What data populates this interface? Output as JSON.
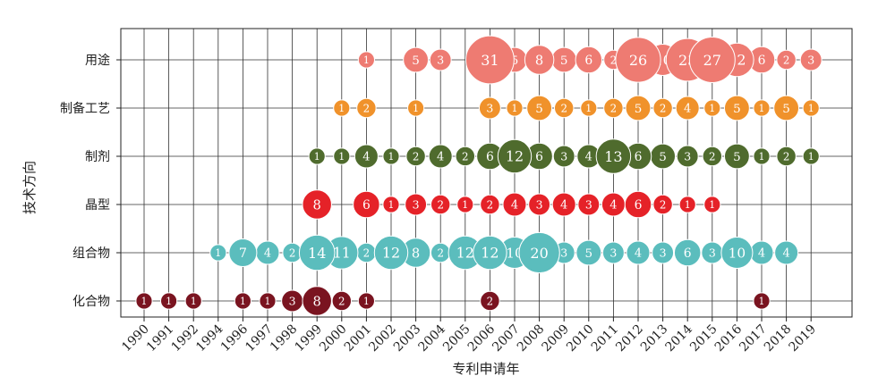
{
  "chart_data": {
    "type": "scatter",
    "subtype": "bubble",
    "xlabel": "专利申请年",
    "ylabel": "技术方向",
    "x_categories": [
      "1990",
      "1991",
      "1992",
      "1994",
      "1996",
      "1997",
      "1998",
      "1999",
      "2000",
      "2001",
      "2002",
      "2003",
      "2004",
      "2005",
      "2006",
      "2007",
      "2008",
      "2009",
      "2010",
      "2011",
      "2012",
      "2013",
      "2014",
      "2015",
      "2016",
      "2017",
      "2018",
      "2019"
    ],
    "y_categories": [
      "用途",
      "制备工艺",
      "制剂",
      "晶型",
      "组合物",
      "化合物"
    ],
    "grid": true,
    "legend": "none",
    "series": [
      {
        "category": "用途",
        "color": "#ee7b72",
        "points": [
          {
            "x": "2001",
            "value": 1
          },
          {
            "x": "2003",
            "value": 5
          },
          {
            "x": "2004",
            "value": 3
          },
          {
            "x": "2006",
            "value": 31
          },
          {
            "x": "2007",
            "value": 5
          },
          {
            "x": "2008",
            "value": 8
          },
          {
            "x": "2009",
            "value": 5
          },
          {
            "x": "2010",
            "value": 6
          },
          {
            "x": "2011",
            "value": 2
          },
          {
            "x": "2012",
            "value": 26
          },
          {
            "x": "2013",
            "value": 10
          },
          {
            "x": "2014",
            "value": 23
          },
          {
            "x": "2015",
            "value": 27
          },
          {
            "x": "2016",
            "value": 12
          },
          {
            "x": "2017",
            "value": 6
          },
          {
            "x": "2018",
            "value": 2
          },
          {
            "x": "2019",
            "value": 3
          }
        ]
      },
      {
        "category": "制备工艺",
        "color": "#f0922b",
        "points": [
          {
            "x": "2000",
            "value": 1
          },
          {
            "x": "2001",
            "value": 2
          },
          {
            "x": "2003",
            "value": 1
          },
          {
            "x": "2006",
            "value": 3
          },
          {
            "x": "2007",
            "value": 1
          },
          {
            "x": "2008",
            "value": 5
          },
          {
            "x": "2009",
            "value": 2
          },
          {
            "x": "2010",
            "value": 1
          },
          {
            "x": "2011",
            "value": 2
          },
          {
            "x": "2012",
            "value": 5
          },
          {
            "x": "2013",
            "value": 2
          },
          {
            "x": "2014",
            "value": 4
          },
          {
            "x": "2015",
            "value": 1
          },
          {
            "x": "2016",
            "value": 5
          },
          {
            "x": "2017",
            "value": 1
          },
          {
            "x": "2018",
            "value": 5
          },
          {
            "x": "2019",
            "value": 1
          }
        ]
      },
      {
        "category": "制剂",
        "color": "#4f6b2d",
        "points": [
          {
            "x": "1999",
            "value": 1
          },
          {
            "x": "2000",
            "value": 1
          },
          {
            "x": "2001",
            "value": 4
          },
          {
            "x": "2002",
            "value": 1
          },
          {
            "x": "2003",
            "value": 2
          },
          {
            "x": "2004",
            "value": 4
          },
          {
            "x": "2005",
            "value": 2
          },
          {
            "x": "2006",
            "value": 6
          },
          {
            "x": "2007",
            "value": 12
          },
          {
            "x": "2008",
            "value": 6
          },
          {
            "x": "2009",
            "value": 3
          },
          {
            "x": "2010",
            "value": 4
          },
          {
            "x": "2011",
            "value": 13
          },
          {
            "x": "2012",
            "value": 6
          },
          {
            "x": "2013",
            "value": 5
          },
          {
            "x": "2014",
            "value": 3
          },
          {
            "x": "2015",
            "value": 2
          },
          {
            "x": "2016",
            "value": 5
          },
          {
            "x": "2017",
            "value": 1
          },
          {
            "x": "2018",
            "value": 2
          },
          {
            "x": "2019",
            "value": 1
          }
        ]
      },
      {
        "category": "晶型",
        "color": "#e52228",
        "points": [
          {
            "x": "1999",
            "value": 8
          },
          {
            "x": "2001",
            "value": 6
          },
          {
            "x": "2002",
            "value": 1
          },
          {
            "x": "2003",
            "value": 3
          },
          {
            "x": "2004",
            "value": 2
          },
          {
            "x": "2005",
            "value": 1
          },
          {
            "x": "2006",
            "value": 2
          },
          {
            "x": "2007",
            "value": 4
          },
          {
            "x": "2008",
            "value": 3
          },
          {
            "x": "2009",
            "value": 4
          },
          {
            "x": "2010",
            "value": 3
          },
          {
            "x": "2011",
            "value": 4
          },
          {
            "x": "2012",
            "value": 6
          },
          {
            "x": "2013",
            "value": 2
          },
          {
            "x": "2014",
            "value": 1
          },
          {
            "x": "2015",
            "value": 1
          }
        ]
      },
      {
        "category": "组合物",
        "color": "#5bbdbd",
        "points": [
          {
            "x": "1994",
            "value": 1
          },
          {
            "x": "1996",
            "value": 7
          },
          {
            "x": "1997",
            "value": 4
          },
          {
            "x": "1998",
            "value": 2
          },
          {
            "x": "1999",
            "value": 14
          },
          {
            "x": "2000",
            "value": 11
          },
          {
            "x": "2001",
            "value": 2
          },
          {
            "x": "2002",
            "value": 12
          },
          {
            "x": "2003",
            "value": 8
          },
          {
            "x": "2004",
            "value": 2
          },
          {
            "x": "2005",
            "value": 12
          },
          {
            "x": "2006",
            "value": 12
          },
          {
            "x": "2007",
            "value": 10
          },
          {
            "x": "2008",
            "value": 20
          },
          {
            "x": "2009",
            "value": 3
          },
          {
            "x": "2010",
            "value": 5
          },
          {
            "x": "2011",
            "value": 3
          },
          {
            "x": "2012",
            "value": 4
          },
          {
            "x": "2013",
            "value": 3
          },
          {
            "x": "2014",
            "value": 6
          },
          {
            "x": "2015",
            "value": 3
          },
          {
            "x": "2016",
            "value": 10
          },
          {
            "x": "2017",
            "value": 4
          },
          {
            "x": "2018",
            "value": 4
          }
        ]
      },
      {
        "category": "化合物",
        "color": "#7a1420",
        "points": [
          {
            "x": "1990",
            "value": 1
          },
          {
            "x": "1991",
            "value": 1
          },
          {
            "x": "1992",
            "value": 1
          },
          {
            "x": "1996",
            "value": 1
          },
          {
            "x": "1997",
            "value": 1
          },
          {
            "x": "1998",
            "value": 3
          },
          {
            "x": "1999",
            "value": 8
          },
          {
            "x": "2000",
            "value": 2
          },
          {
            "x": "2001",
            "value": 1
          },
          {
            "x": "2006",
            "value": 2
          },
          {
            "x": "2017",
            "value": 1
          }
        ]
      }
    ]
  }
}
